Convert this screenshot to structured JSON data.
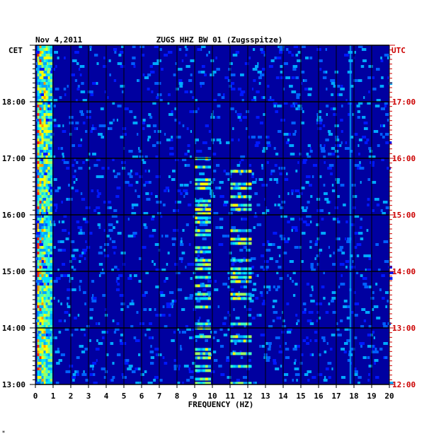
{
  "chart_data": {
    "type": "heatmap",
    "title": "ZUGS HHZ BW 01 (Zugsspitze)",
    "date": "Nov 4,2011",
    "xlabel": "FREQUENCY (HZ)",
    "left_axis_label": "CET",
    "right_axis_label": "UTC",
    "xlim": [
      0,
      20
    ],
    "x_ticks": [
      "0",
      "1",
      "2",
      "3",
      "4",
      "5",
      "6",
      "7",
      "8",
      "9",
      "10",
      "11",
      "12",
      "13",
      "14",
      "15",
      "16",
      "17",
      "18",
      "19",
      "20"
    ],
    "left_time_range": [
      "13:00",
      "19:00"
    ],
    "left_ticks": [
      "13:00",
      "14:00",
      "15:00",
      "16:00",
      "17:00",
      "18:00"
    ],
    "right_ticks": [
      "12:00",
      "13:00",
      "14:00",
      "15:00",
      "16:00",
      "17:00"
    ],
    "colors": {
      "background": "#0000a0",
      "utc": "#cc0000",
      "grid": "#000000"
    },
    "features": [
      {
        "name": "low-frequency band",
        "freq_hz": [
          0.1,
          0.9
        ],
        "intensity": "high"
      },
      {
        "name": "9-10 Hz bursts",
        "freq_hz": [
          9.0,
          9.9
        ],
        "intensity": "medium"
      },
      {
        "name": "11-12 Hz bursts",
        "freq_hz": [
          11.0,
          12.2
        ],
        "intensity": "medium"
      },
      {
        "name": "17.8 Hz line",
        "freq_hz": [
          17.75,
          17.85
        ],
        "intensity": "medium"
      }
    ]
  },
  "footer_mark": "*"
}
